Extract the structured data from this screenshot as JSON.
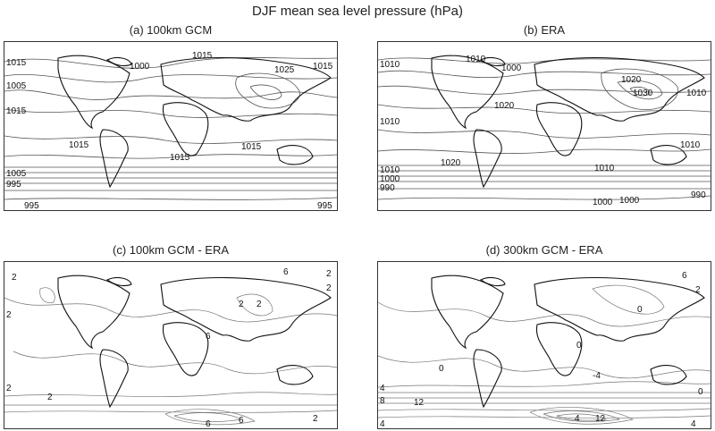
{
  "figure": {
    "title": "DJF mean sea level pressure (hPa)"
  },
  "panels": [
    {
      "id": "a",
      "title": "(a) 100km GCM",
      "contour_labels": [
        "1015",
        "1005",
        "1015",
        "1015",
        "1015",
        "1005",
        "995",
        "995",
        "1000",
        "1025",
        "1015",
        "1015",
        "1015",
        "995"
      ]
    },
    {
      "id": "b",
      "title": "(b) ERA",
      "contour_labels": [
        "1010",
        "1010",
        "1000",
        "1020",
        "1030",
        "1020",
        "1010",
        "1010",
        "1020",
        "1010",
        "1000",
        "990",
        "1010",
        "1000",
        "1000",
        "990",
        "1010"
      ]
    },
    {
      "id": "c",
      "title": "(c) 100km GCM -  ERA",
      "contour_labels": [
        "2",
        "2",
        "6",
        "2",
        "2",
        "2",
        "2",
        "6",
        "2",
        "6",
        "6",
        "2",
        "2"
      ]
    },
    {
      "id": "d",
      "title": "(d) 300km GCM - ERA",
      "contour_labels": [
        "6",
        "2",
        "0",
        "0",
        "0",
        "-4",
        "12",
        "4",
        "12",
        "4",
        "4",
        "8",
        "0",
        "4"
      ]
    }
  ]
}
